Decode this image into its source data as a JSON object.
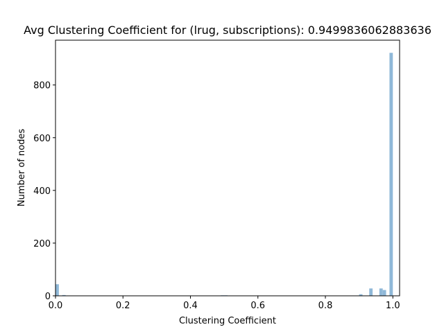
{
  "chart_data": {
    "type": "bar",
    "title": "Avg Clustering Coefficient for (lrug, subscriptions): 0.9499836062883636",
    "xlabel": "Clustering Coefficient",
    "ylabel": "Number of nodes",
    "xlim": [
      0,
      1.02
    ],
    "ylim": [
      0,
      970
    ],
    "bin_width": 0.01,
    "x_ticks": [
      0.0,
      0.2,
      0.4,
      0.6,
      0.8,
      1.0
    ],
    "x_tick_labels": [
      "0.0",
      "0.2",
      "0.4",
      "0.6",
      "0.8",
      "1.0"
    ],
    "y_ticks": [
      0,
      200,
      400,
      600,
      800
    ],
    "y_tick_labels": [
      "0",
      "200",
      "400",
      "600",
      "800"
    ],
    "bar_color": "#8fb8d8",
    "grid": false,
    "bins": [
      {
        "x": 0.0,
        "value": 44
      },
      {
        "x": 0.02,
        "value": 3
      },
      {
        "x": 0.49,
        "value": 2
      },
      {
        "x": 0.5,
        "value": 2
      },
      {
        "x": 0.9,
        "value": 6
      },
      {
        "x": 0.93,
        "value": 28
      },
      {
        "x": 0.96,
        "value": 28
      },
      {
        "x": 0.97,
        "value": 22
      },
      {
        "x": 0.99,
        "value": 922
      }
    ]
  }
}
